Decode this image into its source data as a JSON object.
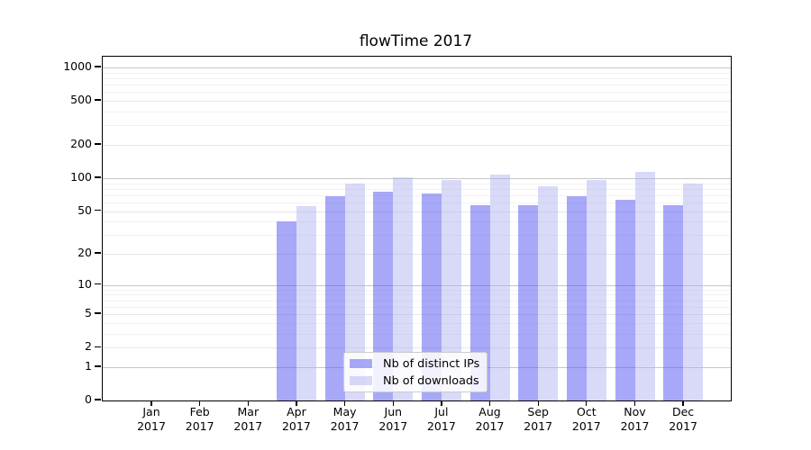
{
  "title": "flowTime 2017",
  "chart_data": {
    "type": "bar",
    "title": "flowTime 2017",
    "xlabel": "",
    "ylabel": "",
    "categories": [
      "Jan 2017",
      "Feb 2017",
      "Mar 2017",
      "Apr 2017",
      "May 2017",
      "Jun 2017",
      "Jul 2017",
      "Aug 2017",
      "Sep 2017",
      "Oct 2017",
      "Nov 2017",
      "Dec 2017"
    ],
    "series": [
      {
        "name": "Nb of distinct IPs",
        "color": "rgba(81,81,241,0.5)",
        "solid_color": "#a8a8f8",
        "values": [
          0,
          0,
          0,
          40,
          68,
          75,
          72,
          57,
          57,
          68,
          63,
          57
        ]
      },
      {
        "name": "Nb of downloads",
        "color": "rgba(171,171,239,0.45)",
        "solid_color": "#d9d9f8",
        "values": [
          0,
          0,
          0,
          56,
          90,
          101,
          97,
          107,
          84,
          97,
          114,
          89
        ]
      }
    ],
    "yscale": "log1p",
    "y_ticks": [
      0,
      1,
      2,
      5,
      10,
      20,
      50,
      100,
      200,
      500,
      1000
    ],
    "y_minor_ticks": [
      3,
      4,
      6,
      7,
      8,
      9,
      30,
      40,
      60,
      70,
      80,
      90,
      300,
      400,
      600,
      700,
      800,
      900
    ],
    "ylim": [
      0,
      1250
    ],
    "grid": true,
    "legend_position": "lower center"
  },
  "legend": {
    "items": [
      {
        "label": "Nb of distinct IPs"
      },
      {
        "label": "Nb of downloads"
      }
    ]
  }
}
